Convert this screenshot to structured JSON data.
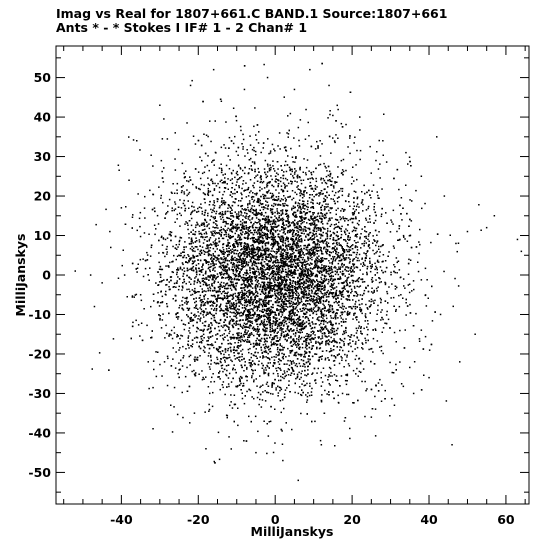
{
  "chart_data": {
    "type": "scatter",
    "title_line1": "Imag vs Real for 1807+661.C BAND.1   Source:1807+661",
    "title_line2": "Ants * - *     Stokes I   IF# 1 - 2   Chan# 1",
    "xlabel": "MilliJanskys",
    "ylabel": "MilliJanskys",
    "xlim": [
      -57,
      66
    ],
    "ylim": [
      -58,
      58
    ],
    "xticks": [
      -40,
      -20,
      0,
      20,
      40,
      60
    ],
    "yticks": [
      -50,
      -40,
      -30,
      -20,
      -10,
      0,
      10,
      20,
      30,
      40,
      50
    ],
    "grid": false,
    "point_color": "#000000",
    "point_cloud": {
      "approx_count": 9000,
      "center_x": 0,
      "center_y": 0,
      "spread_x": 14,
      "spread_y": 14,
      "x_extent": [
        -55,
        64
      ],
      "y_extent": [
        -56,
        56
      ]
    },
    "points": [
      [
        -52,
        1
      ],
      [
        -47,
        -8
      ],
      [
        -43,
        11
      ],
      [
        -48,
        0
      ],
      [
        -45,
        -2
      ],
      [
        -40,
        17
      ],
      [
        -38,
        24
      ],
      [
        -37,
        -12
      ],
      [
        -36,
        34
      ],
      [
        -35,
        -5
      ],
      [
        -33,
        -22
      ],
      [
        -30,
        43
      ],
      [
        -28,
        -28
      ],
      [
        -26,
        36
      ],
      [
        -22,
        48
      ],
      [
        -21,
        -35
      ],
      [
        -18,
        -44
      ],
      [
        -16,
        52
      ],
      [
        -14,
        44
      ],
      [
        -12,
        -41
      ],
      [
        -8,
        47
      ],
      [
        -5,
        -45
      ],
      [
        -2,
        50
      ],
      [
        2,
        -47
      ],
      [
        5,
        47
      ],
      [
        6,
        -52
      ],
      [
        9,
        52
      ],
      [
        12,
        -43
      ],
      [
        14,
        48
      ],
      [
        18,
        -37
      ],
      [
        22,
        40
      ],
      [
        25,
        -36
      ],
      [
        28,
        34
      ],
      [
        31,
        -33
      ],
      [
        34,
        31
      ],
      [
        36,
        -30
      ],
      [
        38,
        25
      ],
      [
        40,
        -26
      ],
      [
        42,
        35
      ],
      [
        43,
        -10
      ],
      [
        44,
        20
      ],
      [
        46,
        -43
      ],
      [
        47,
        8
      ],
      [
        48,
        -22
      ],
      [
        50,
        11
      ],
      [
        52,
        -15
      ],
      [
        55,
        12
      ],
      [
        57,
        15
      ],
      [
        63,
        9
      ],
      [
        64,
        6
      ]
    ]
  }
}
